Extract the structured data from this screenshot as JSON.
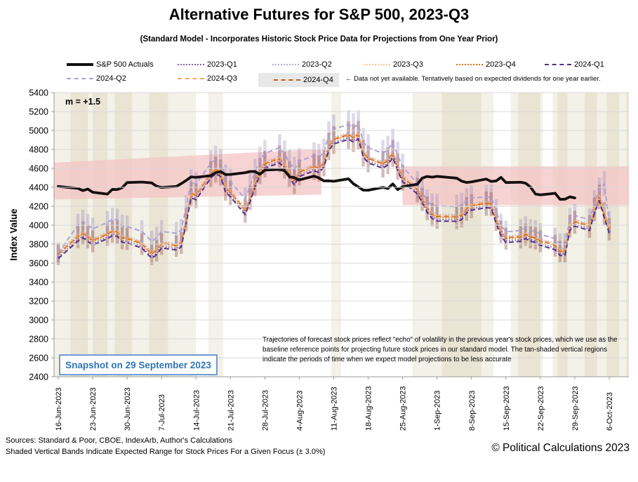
{
  "title": "Alternative Futures for S&P 500, 2023-Q3",
  "subtitle": "(Standard Model - Incorporates Historic Stock Price Data for Projections from One Year Prior)",
  "legend": {
    "row1": [
      {
        "label": "S&P 500 Actuals",
        "style": "solid",
        "color": "#151010",
        "thick": 4
      },
      {
        "label": "2023-Q1",
        "style": "dotted",
        "color": "#7f62b3",
        "thick": 2
      },
      {
        "label": "2023-Q2",
        "style": "dotted",
        "color": "#b6aed7",
        "thick": 2
      },
      {
        "label": "2023-Q3",
        "style": "dotted",
        "color": "#fbc79b",
        "thick": 2
      },
      {
        "label": "2023-Q4",
        "style": "dotted",
        "color": "#e8720c",
        "thick": 2
      },
      {
        "label": "2024-Q1",
        "style": "dashed",
        "color": "#4f2d8f",
        "thick": 2
      }
    ],
    "row2": [
      {
        "label": "2024-Q2",
        "style": "dashed",
        "color": "#a9a0d6",
        "thick": 2
      },
      {
        "label": "2024-Q3",
        "style": "dashed",
        "color": "#f5a95f",
        "thick": 2
      },
      {
        "label": "2024-Q4",
        "style": "dashed",
        "color": "#c55a11",
        "thick": 2,
        "highlight": true
      }
    ],
    "note": "← Data not yet available.  Tentatively based on expected dividends for one year earlier."
  },
  "annotations": {
    "m_label": "m = +1.5",
    "snapshot": "Snapshot on 29 September 2023",
    "note_text": "Trajectories of forecast stock prices reflect \"echo\" of volatility in  the previous year's stock prices, which we use as the baseline reference points for projecting future stock prices in our standard model.   The tan-shaded vertical regions indicate the periods of time when we expect model projections to be less accurate"
  },
  "y_axis": {
    "title": "Index Value",
    "min": 2400,
    "max": 5400,
    "step": 200
  },
  "x_axis": {
    "labels": [
      "16-Jun-2023",
      "23-Jun-2023",
      "30-Jun-2023",
      "7-Jul-2023",
      "14-Jul-2023",
      "21-Jul-2023",
      "28-Jul-2023",
      "4-Aug-2023",
      "11-Aug-2023",
      "18-Aug-2023",
      "25-Aug-2023",
      "1-Sep-2023",
      "8-Sep-2023",
      "15-Sep-2023",
      "22-Sep-2023",
      "29-Sep-2023",
      "6-Oct-2023"
    ]
  },
  "footer": {
    "sources": "Sources: Standard & Poor, CBOE, IndexArb, Author's Calculations",
    "bands": "Shaded Vertical Bands Indicate Expected Range for Stock Prices For a Given Focus  (± 3.0%)",
    "copyright": "© Political Calculations 2023"
  },
  "chart_data": {
    "type": "line",
    "x": [
      "16-Jun",
      "20-Jun",
      "21-Jun",
      "22-Jun",
      "23-Jun",
      "26-Jun",
      "27-Jun",
      "28-Jun",
      "29-Jun",
      "30-Jun",
      "3-Jul",
      "5-Jul",
      "6-Jul",
      "7-Jul",
      "10-Jul",
      "11-Jul",
      "12-Jul",
      "13-Jul",
      "14-Jul",
      "17-Jul",
      "18-Jul",
      "19-Jul",
      "20-Jul",
      "21-Jul",
      "24-Jul",
      "25-Jul",
      "26-Jul",
      "27-Jul",
      "28-Jul",
      "31-Jul",
      "1-Aug",
      "2-Aug",
      "3-Aug",
      "4-Aug",
      "7-Aug",
      "8-Aug",
      "9-Aug",
      "10-Aug",
      "11-Aug",
      "14-Aug",
      "15-Aug",
      "16-Aug",
      "17-Aug",
      "18-Aug",
      "21-Aug",
      "22-Aug",
      "23-Aug",
      "24-Aug",
      "25-Aug",
      "28-Aug",
      "29-Aug",
      "30-Aug",
      "31-Aug",
      "1-Sep",
      "5-Sep",
      "6-Sep",
      "7-Sep",
      "8-Sep",
      "11-Sep",
      "12-Sep",
      "13-Sep",
      "14-Sep",
      "15-Sep",
      "18-Sep",
      "19-Sep",
      "20-Sep",
      "21-Sep",
      "22-Sep",
      "25-Sep",
      "26-Sep",
      "27-Sep",
      "28-Sep",
      "29-Sep",
      "2-Oct",
      "3-Oct",
      "4-Oct",
      "5-Oct",
      "6-Oct"
    ],
    "actuals": {
      "name": "S&P 500 Actuals",
      "color": "#151010",
      "values": [
        4409.6,
        4388.7,
        4365.7,
        4381.9,
        4348.3,
        4328.8,
        4378.4,
        4376.9,
        4396.4,
        4450.4,
        4455.6,
        4446.8,
        4411.6,
        4399.0,
        4409.5,
        4439.3,
        4472.2,
        4510.0,
        4505.4,
        4522.8,
        4555.0,
        4565.7,
        4534.9,
        4536.3,
        4554.6,
        4567.5,
        4566.8,
        4537.4,
        4582.2,
        4589.0,
        4576.7,
        4513.4,
        4501.9,
        4478.0,
        4518.4,
        4499.4,
        4467.7,
        4468.8,
        4464.1,
        4489.7,
        4437.9,
        4404.3,
        4370.4,
        4369.7,
        4399.8,
        4387.6,
        4436.0,
        4376.3,
        4405.7,
        4433.3,
        4497.6,
        4514.9,
        4507.7,
        4515.8,
        4496.8,
        4465.5,
        4451.1,
        4457.5,
        4487.5,
        4461.9,
        4467.4,
        4505.1,
        4450.3,
        4453.5,
        4444.0,
        4402.2,
        4330.0,
        4320.1,
        4337.4,
        4273.5,
        4274.5,
        4299.7,
        4288.1
      ]
    },
    "projections": {
      "base": [
        3690,
        3875,
        3910,
        3872,
        3830,
        3900,
        3932,
        3925,
        3862,
        3855,
        3800,
        3692,
        3730,
        3802,
        3780,
        3812,
        4060,
        4332,
        4310,
        4540,
        4586,
        4556,
        4390,
        4342,
        4152,
        4290,
        4442,
        4572,
        4645,
        4700,
        4632,
        4540,
        4465,
        4556,
        4615,
        4598,
        4655,
        4832,
        4900,
        4948,
        4920,
        4952,
        4762,
        4700,
        4642,
        4680,
        4758,
        4618,
        4500,
        4372,
        4280,
        4178,
        4112,
        4086,
        4082,
        4100,
        4172,
        4200,
        4228,
        4222,
        4062,
        3930,
        3858,
        3872,
        3900,
        3872,
        3860,
        3830,
        3782,
        3722,
        3720,
        3990,
        4032,
        3986,
        4168,
        4300,
        4120,
        3958
      ],
      "series": [
        {
          "name": "2023-Q2",
          "style": "dotted",
          "color": "#b6aed7",
          "offset": 28
        },
        {
          "name": "2023-Q3",
          "style": "dotted",
          "color": "#fbc79b",
          "offset": -12
        },
        {
          "name": "2023-Q1",
          "style": "dotted",
          "color": "#7f62b3",
          "offset": -25
        },
        {
          "name": "2023-Q4",
          "style": "dotted",
          "color": "#e8720c",
          "offset": 0
        },
        {
          "name": "2024-Q4",
          "style": "dashed",
          "color": "#c55a11",
          "offset": 8
        },
        {
          "name": "2024-Q3",
          "style": "dashed",
          "color": "#f5a95f",
          "offset": 16
        },
        {
          "name": "2024-Q2",
          "style": "dashed",
          "color": "#a9a0d6",
          "values": [
            3705,
            4002,
            4042,
            4000,
            3962,
            4030,
            4062,
            4055,
            3992,
            3985,
            3935,
            3828,
            3868,
            3935,
            3915,
            3945,
            4190,
            4455,
            4432,
            4652,
            4695,
            4668,
            4508,
            4460,
            4278,
            4418,
            4562,
            4690,
            4758,
            4818,
            4752,
            4662,
            4586,
            4675,
            4735,
            4718,
            4772,
            4948,
            5018,
            5062,
            5032,
            5062,
            4880,
            4818,
            4758,
            4798,
            4872,
            4738,
            4618,
            4440,
            4355,
            4252,
            4208,
            4205,
            4196,
            4215,
            4262,
            4290,
            4296,
            4300,
            4150,
            4002,
            3930,
            3945,
            3975,
            3945,
            3935,
            3905,
            3858,
            3798,
            3800,
            4062,
            4102,
            4058,
            4242,
            4372,
            4440,
            4032
          ]
        },
        {
          "name": "2024-Q1",
          "style": "dashed",
          "color": "#4f2d8f",
          "offset": -42
        }
      ]
    },
    "range_bars": {
      "pct": 3.0,
      "maroon": "rgba(148,82,70,0.38)",
      "lavender": "rgba(145,135,190,0.32)"
    },
    "pink_band": {
      "color": "rgba(244,196,196,0.75)",
      "wedge": {
        "from_day": -0.9,
        "to_day": 53.5,
        "top_from": 4660,
        "top_to": 4805,
        "bot_from": 4272,
        "bot_to": 4322
      },
      "rect": {
        "from_day": 70,
        "to_day": 116.6,
        "top": 4622,
        "bottom": 4212
      }
    },
    "tan_stripes": [
      [
        -0.9,
        28,
        1
      ],
      [
        2.5,
        6,
        2
      ],
      [
        7,
        10,
        2
      ],
      [
        11.5,
        15,
        2
      ],
      [
        18.5,
        22.3,
        2
      ],
      [
        30.5,
        33.5,
        1
      ],
      [
        55.5,
        57.5,
        1
      ],
      [
        72,
        88.5,
        1
      ],
      [
        92,
        98.5,
        1
      ],
      [
        100.5,
        116.6,
        1
      ],
      [
        78,
        86,
        2
      ],
      [
        93.5,
        98,
        2
      ],
      [
        101.5,
        103.5,
        2
      ],
      [
        107,
        109.5,
        2
      ],
      [
        111.5,
        114,
        2
      ],
      [
        115.5,
        116.6,
        2
      ]
    ],
    "grid_color": "#d9d9d9",
    "axis_color": "#9b9b9b"
  }
}
